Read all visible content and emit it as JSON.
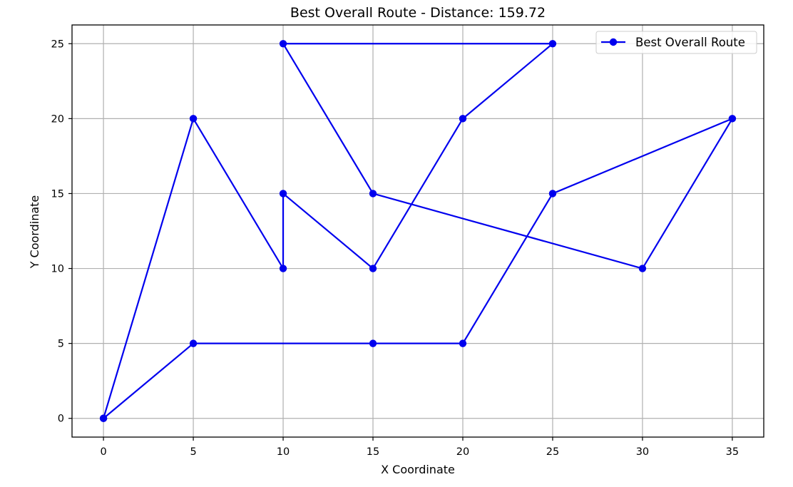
{
  "chart_data": {
    "type": "line",
    "title": "Best Overall Route - Distance: 159.72",
    "xlabel": "X Coordinate",
    "ylabel": "Y Coordinate",
    "xlim": [
      -1.75,
      36.75
    ],
    "ylim": [
      -1.25,
      26.25
    ],
    "x_ticks": [
      "0",
      "5",
      "10",
      "15",
      "20",
      "25",
      "30",
      "35"
    ],
    "y_ticks": [
      "0",
      "5",
      "10",
      "15",
      "20",
      "25"
    ],
    "grid": true,
    "legend_position": "top-right",
    "series": [
      {
        "name": "Best Overall Route",
        "color": "#0000ee",
        "marker": "circle",
        "points": [
          {
            "x": 0,
            "y": 0
          },
          {
            "x": 5,
            "y": 20
          },
          {
            "x": 10,
            "y": 10
          },
          {
            "x": 10,
            "y": 15
          },
          {
            "x": 15,
            "y": 10
          },
          {
            "x": 20,
            "y": 20
          },
          {
            "x": 25,
            "y": 25
          },
          {
            "x": 10,
            "y": 25
          },
          {
            "x": 15,
            "y": 15
          },
          {
            "x": 30,
            "y": 10
          },
          {
            "x": 35,
            "y": 20
          },
          {
            "x": 25,
            "y": 15
          },
          {
            "x": 20,
            "y": 5
          },
          {
            "x": 15,
            "y": 5
          },
          {
            "x": 5,
            "y": 5
          },
          {
            "x": 0,
            "y": 0
          }
        ]
      }
    ]
  }
}
